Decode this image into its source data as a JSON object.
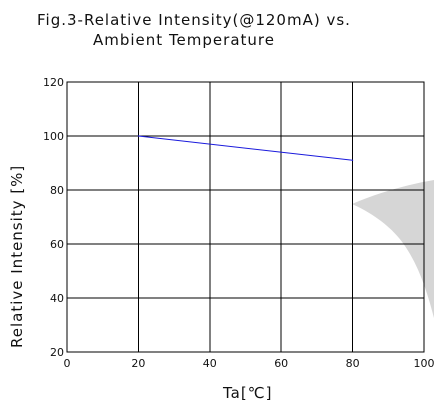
{
  "chart_data": {
    "type": "line",
    "title": [
      "Fig.3-Relative Intensity(@120mA) vs.",
      "Ambient Temperature"
    ],
    "xlabel": "Ta[℃]",
    "ylabel": "Relative Intensity [%]",
    "xlim": [
      0,
      100
    ],
    "ylim": [
      20,
      120
    ],
    "x_ticks": [
      0,
      20,
      40,
      60,
      80,
      100
    ],
    "y_ticks": [
      20,
      40,
      60,
      80,
      100,
      120
    ],
    "grid": true,
    "series": [
      {
        "color": "#1a1adc",
        "x": [
          20,
          80
        ],
        "y": [
          100,
          91
        ]
      }
    ]
  },
  "colors": {
    "grid": "#000000",
    "text": "#111111",
    "watermark": "#cfcfcf"
  }
}
